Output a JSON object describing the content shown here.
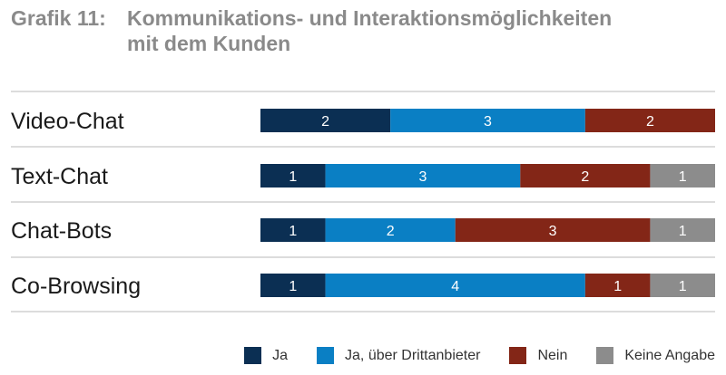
{
  "title": {
    "prefix": "Grafik 11:",
    "line1": "Kommunikations- und Interaktionsmöglichkeiten",
    "line2": "mit dem Kunden"
  },
  "colors": {
    "ja": "#0b2f53",
    "dritt": "#0a7fc4",
    "nein": "#832617",
    "keine": "#8c8c8c",
    "divider": "#c8c8c8",
    "label": "#1a1a1a"
  },
  "chart_data": {
    "type": "bar",
    "stacked": true,
    "orientation": "horizontal",
    "categories": [
      "Video-Chat",
      "Text-Chat",
      "Chat-Bots",
      "Co-Browsing"
    ],
    "series": [
      {
        "name": "Ja",
        "color_key": "ja",
        "values": [
          2,
          1,
          1,
          1
        ]
      },
      {
        "name": "Ja, über Drittanbieter",
        "color_key": "dritt",
        "values": [
          3,
          3,
          2,
          4
        ]
      },
      {
        "name": "Nein",
        "color_key": "nein",
        "values": [
          2,
          2,
          3,
          1
        ]
      },
      {
        "name": "Keine Angabe",
        "color_key": "keine",
        "values": [
          0,
          1,
          1,
          1
        ]
      }
    ],
    "xlim": [
      0,
      7
    ],
    "legend_position": "bottom-right"
  }
}
